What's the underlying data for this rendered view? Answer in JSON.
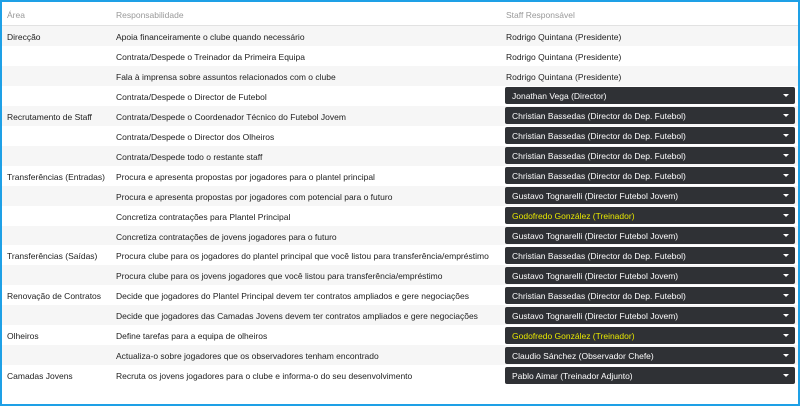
{
  "header": {
    "area": "Área",
    "responsibility": "Responsabilidade",
    "staff": "Staff Responsável"
  },
  "colors": {
    "highlight_text": "#e8e800",
    "dropdown_bg": "#2f3135",
    "frame": "#1ea0e6"
  },
  "rows": [
    {
      "area": "Direcção",
      "task": "Apoia financeiramente o clube quando necessário",
      "staff": "Rodrigo Quintana (Presidente)",
      "dropdown": false
    },
    {
      "area": "",
      "task": "Contrata/Despede o Treinador da Primeira Equipa",
      "staff": "Rodrigo Quintana (Presidente)",
      "dropdown": false
    },
    {
      "area": "",
      "task": "Fala à imprensa sobre assuntos relacionados com o clube",
      "staff": "Rodrigo Quintana (Presidente)",
      "dropdown": false
    },
    {
      "area": "",
      "task": "Contrata/Despede o Director de Futebol",
      "staff": "Jonathan Vega (Director)",
      "dropdown": true
    },
    {
      "area": "Recrutamento de Staff",
      "task": "Contrata/Despede o Coordenador Técnico do Futebol Jovem",
      "staff": "Christian Bassedas (Director do Dep. Futebol)",
      "dropdown": true
    },
    {
      "area": "",
      "task": "Contrata/Despede o Director dos Olheiros",
      "staff": "Christian Bassedas (Director do Dep. Futebol)",
      "dropdown": true
    },
    {
      "area": "",
      "task": "Contrata/Despede todo o restante staff",
      "staff": "Christian Bassedas (Director do Dep. Futebol)",
      "dropdown": true
    },
    {
      "area": "Transferências (Entradas)",
      "task": "Procura e apresenta propostas por jogadores para o plantel principal",
      "staff": "Christian Bassedas (Director do Dep. Futebol)",
      "dropdown": true
    },
    {
      "area": "",
      "task": "Procura e apresenta propostas por jogadores com potencial para o futuro",
      "staff": "Gustavo Tognarelli (Director Futebol Jovem)",
      "dropdown": true
    },
    {
      "area": "",
      "task": "Concretiza contratações para Plantel Principal",
      "staff": "Godofredo González (Treinador)",
      "dropdown": true,
      "highlight": true
    },
    {
      "area": "",
      "task": "Concretiza contratações de jovens jogadores para o futuro",
      "staff": "Gustavo Tognarelli (Director Futebol Jovem)",
      "dropdown": true
    },
    {
      "area": "Transferências (Saídas)",
      "task": "Procura clube para os jogadores do plantel principal que você listou para transferência/empréstimo",
      "staff": "Christian Bassedas (Director do Dep. Futebol)",
      "dropdown": true
    },
    {
      "area": "",
      "task": "Procura clube para os jovens jogadores que você listou para transferência/empréstimo",
      "staff": "Gustavo Tognarelli (Director Futebol Jovem)",
      "dropdown": true
    },
    {
      "area": "Renovação de Contratos",
      "task": "Decide que jogadores do Plantel Principal devem ter contratos ampliados e gere negociações",
      "staff": "Christian Bassedas (Director do Dep. Futebol)",
      "dropdown": true
    },
    {
      "area": "",
      "task": "Decide que jogadores das Camadas Jovens devem ter contratos ampliados e gere negociações",
      "staff": "Gustavo Tognarelli (Director Futebol Jovem)",
      "dropdown": true
    },
    {
      "area": "Olheiros",
      "task": "Define tarefas para a equipa de olheiros",
      "staff": "Godofredo González (Treinador)",
      "dropdown": true,
      "highlight": true
    },
    {
      "area": "",
      "task": "Actualiza-o sobre jogadores que os observadores tenham encontrado",
      "staff": "Claudio Sánchez (Observador Chefe)",
      "dropdown": true
    },
    {
      "area": "Camadas Jovens",
      "task": "Recruta os jovens jogadores para o clube e informa-o do seu desenvolvimento",
      "staff": "Pablo Aimar (Treinador Adjunto)",
      "dropdown": true
    }
  ]
}
